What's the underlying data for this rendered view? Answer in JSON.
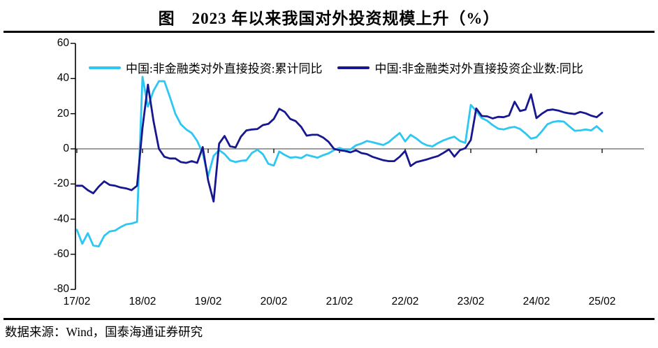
{
  "title": "图　2023 年以来我国对外投资规模上升（%）",
  "source": "数据来源：Wind，国泰海通证券研究",
  "colors": {
    "cyan_series": "#2CC7F2",
    "navy_series": "#17178F",
    "zero_line": "#7f7f7f",
    "axis": "#000000",
    "background": "#ffffff"
  },
  "chart_data": {
    "type": "line",
    "title": "图 2023 年以来我国对外投资规模上升（%）",
    "xlabel": "",
    "ylabel": "",
    "ylim": [
      -80,
      60
    ],
    "grid": "zero-line-only",
    "zero_line": true,
    "legend_position": "top",
    "y_ticks": [
      60,
      40,
      20,
      0,
      -20,
      -40,
      -60,
      -80
    ],
    "x_tick_labels": [
      "17/02",
      "18/02",
      "19/02",
      "20/02",
      "21/02",
      "22/02",
      "23/02",
      "24/02",
      "25/02"
    ],
    "x_start_month": "2017-02",
    "x_end_month": "2025-02",
    "x_frequency": "monthly",
    "series": [
      {
        "name": "中国:非金融类对外直接投资:累计同比",
        "color": "#2CC7F2",
        "values": [
          -46,
          -54,
          -48,
          -55,
          -55.5,
          -49.5,
          -47,
          -46.5,
          -44.5,
          -43,
          -42.5,
          -41.5,
          41,
          24,
          33,
          38.5,
          38.5,
          29.5,
          20,
          14,
          11,
          9,
          4.5,
          -2.5,
          -15.5,
          -4,
          -0.7,
          -3,
          -6.5,
          -7.5,
          -6.8,
          -6.5,
          -2.3,
          -0.5,
          -3,
          -8.5,
          -9.5,
          -1.5,
          -3.5,
          -5,
          -4.7,
          -5.3,
          -3.4,
          -4.2,
          -5,
          -3.6,
          -2.6,
          -0.7,
          0.5,
          -0.5,
          -0.3,
          2,
          3,
          4.5,
          3.8,
          3,
          2.2,
          3.8,
          6.5,
          9,
          4.2,
          8,
          6,
          3.5,
          2,
          1.4,
          3.3,
          4.8,
          6,
          6.9,
          4.5,
          3.4,
          25,
          21.5,
          17.5,
          16,
          13.5,
          11.5,
          11,
          12,
          12.5,
          11.3,
          8.8,
          5.8,
          6.6,
          10,
          14,
          15.3,
          15.8,
          15.5,
          12.8,
          10.3,
          10.5,
          11,
          10.5,
          12.9,
          10
        ]
      },
      {
        "name": "中国:非金融类对外直接投资企业数:同比",
        "color": "#17178F",
        "values": [
          -21,
          -21,
          -23.5,
          -25.3,
          -21.5,
          -18.5,
          -20.5,
          -21,
          -22,
          -22.5,
          -23.5,
          -21,
          12,
          36.5,
          16,
          0,
          -4.5,
          -5.5,
          -5.5,
          -7.5,
          -8,
          -7,
          -8,
          1,
          -18,
          -30,
          3,
          7.3,
          1.5,
          0.8,
          7,
          10.5,
          11,
          11.3,
          13.5,
          14.2,
          17,
          22.8,
          21,
          17,
          15.8,
          12.5,
          7.5,
          8,
          8,
          6.5,
          4,
          0,
          -0.8,
          -1.2,
          -2,
          -0.8,
          -2.4,
          -3,
          -4.5,
          -5.5,
          -6.5,
          -7,
          -7,
          -4.5,
          -1.2,
          -9.8,
          -7.6,
          -6.8,
          -6,
          -5,
          -4.1,
          -2.3,
          -0.3,
          -4.4,
          -0.8,
          0.4,
          5,
          23,
          18.7,
          18.5,
          17.3,
          18.2,
          18,
          19,
          26.8,
          21.5,
          22.3,
          31,
          17.5,
          20,
          22,
          22.4,
          21.8,
          20.8,
          20.2,
          19.8,
          21,
          20.2,
          18.9,
          18,
          20.5
        ]
      }
    ]
  }
}
